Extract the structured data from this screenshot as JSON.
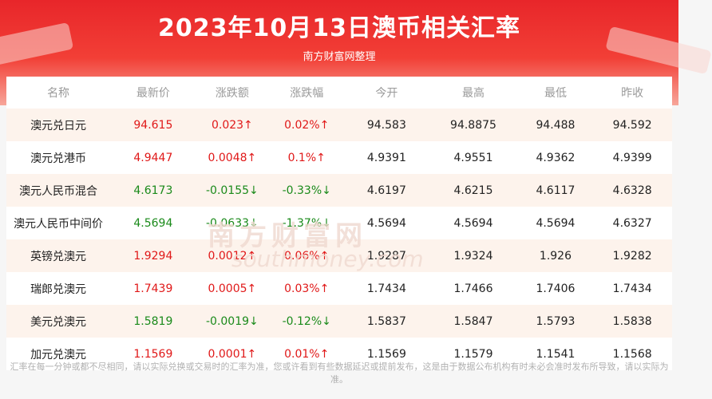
{
  "header": {
    "title": "2023年10月13日澳币相关汇率",
    "subtitle": "南方财富网整理"
  },
  "table": {
    "columns": [
      "名称",
      "最新价",
      "涨跌额",
      "涨跌幅",
      "今开",
      "最高",
      "最低",
      "昨收"
    ],
    "rows": [
      {
        "name": "澳元兑日元",
        "latest": "94.615",
        "change": "0.023↑",
        "pct": "0.02%↑",
        "open": "94.583",
        "high": "94.8875",
        "low": "94.488",
        "prev": "94.592",
        "trend": "up"
      },
      {
        "name": "澳元兑港币",
        "latest": "4.9447",
        "change": "0.0048↑",
        "pct": "0.1%↑",
        "open": "4.9391",
        "high": "4.9551",
        "low": "4.9362",
        "prev": "4.9399",
        "trend": "up"
      },
      {
        "name": "澳元人民币混合",
        "latest": "4.6173",
        "change": "-0.0155↓",
        "pct": "-0.33%↓",
        "open": "4.6197",
        "high": "4.6215",
        "low": "4.6117",
        "prev": "4.6328",
        "trend": "down"
      },
      {
        "name": "澳元人民币中间价",
        "latest": "4.5694",
        "change": "-0.0633↓",
        "pct": "-1.37%↓",
        "open": "4.5694",
        "high": "4.5694",
        "low": "4.5694",
        "prev": "4.6327",
        "trend": "down"
      },
      {
        "name": "英镑兑澳元",
        "latest": "1.9294",
        "change": "0.0012↑",
        "pct": "0.06%↑",
        "open": "1.9287",
        "high": "1.9324",
        "low": "1.926",
        "prev": "1.9282",
        "trend": "up"
      },
      {
        "name": "瑞郎兑澳元",
        "latest": "1.7439",
        "change": "0.0005↑",
        "pct": "0.03%↑",
        "open": "1.7434",
        "high": "1.7466",
        "low": "1.7406",
        "prev": "1.7434",
        "trend": "up"
      },
      {
        "name": "美元兑澳元",
        "latest": "1.5819",
        "change": "-0.0019↓",
        "pct": "-0.12%↓",
        "open": "1.5837",
        "high": "1.5847",
        "low": "1.5793",
        "prev": "1.5838",
        "trend": "down"
      },
      {
        "name": "加元兑澳元",
        "latest": "1.1569",
        "change": "0.0001↑",
        "pct": "0.01%↑",
        "open": "1.1569",
        "high": "1.1579",
        "low": "1.1541",
        "prev": "1.1568",
        "trend": "up"
      }
    ]
  },
  "watermark": {
    "cn": "南方财富网",
    "en": "southmoney.com"
  },
  "footer": {
    "note": "汇率在每一分钟或都不尽相同，请以实际兑换或交易时的汇率为准，您或许看到有些数据延迟或提前发布，这是由于数据公布机构有时未必会准时发布所导致，请以实际为准。"
  },
  "colors": {
    "banner_red": "#e8262a",
    "up": "#e01818",
    "down": "#1a8a1a",
    "stripe": "#fdf3ec"
  }
}
